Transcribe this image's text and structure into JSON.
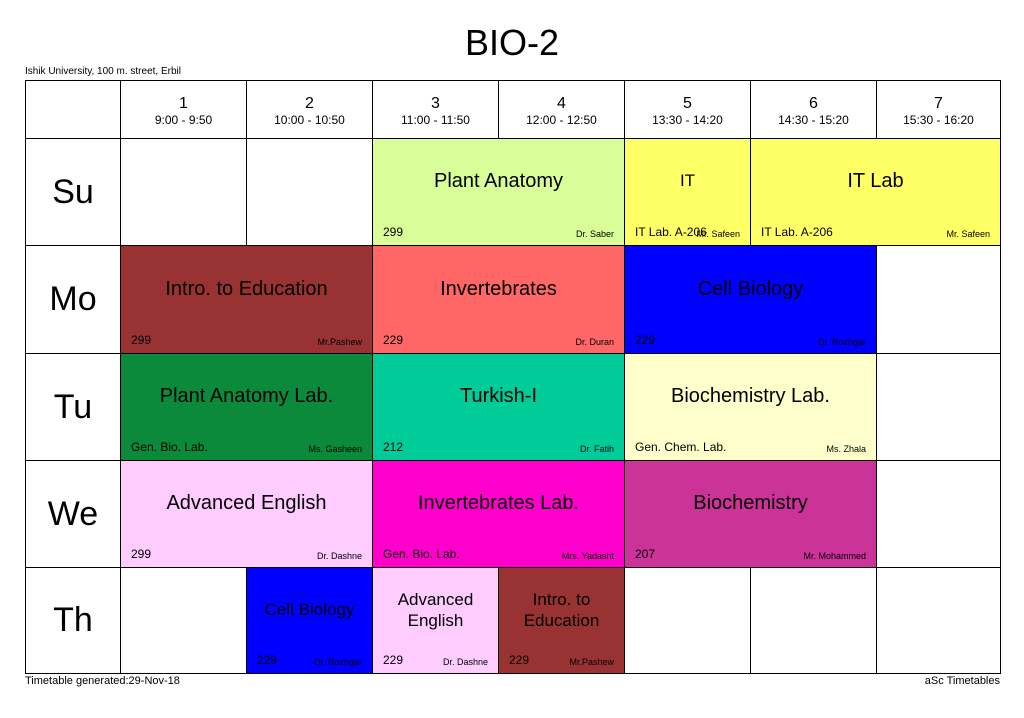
{
  "header": {
    "title": "BIO-2",
    "subtitle": "Ishik University, 100 m. street, Erbil"
  },
  "periods": [
    {
      "number": "1",
      "time": "9:00 - 9:50"
    },
    {
      "number": "2",
      "time": "10:00 - 10:50"
    },
    {
      "number": "3",
      "time": "11:00 - 11:50"
    },
    {
      "number": "4",
      "time": "12:00 - 12:50"
    },
    {
      "number": "5",
      "time": "13:30 - 14:20"
    },
    {
      "number": "6",
      "time": "14:30 - 15:20"
    },
    {
      "number": "7",
      "time": "15:30 - 16:20"
    }
  ],
  "days": [
    {
      "name": "Su",
      "lessons": [
        {
          "subject": "Plant Anatomy",
          "room": "299",
          "teacher": "Dr. Saber",
          "color": "#d9fe99"
        },
        {
          "subject": "IT",
          "room": "IT Lab. A-206",
          "teacher": "Mr. Safeen",
          "color": "#ffff66"
        },
        {
          "subject": "IT Lab",
          "room": "IT Lab. A-206",
          "teacher": "Mr. Safeen",
          "color": "#ffff66"
        }
      ]
    },
    {
      "name": "Mo",
      "lessons": [
        {
          "subject": "Intro. to Education",
          "room": "299",
          "teacher": "Mr.Pashew",
          "color": "#993333"
        },
        {
          "subject": "Invertebrates",
          "room": "229",
          "teacher": "Dr. Duran",
          "color": "#ff6666"
        },
        {
          "subject": "Cell Biology",
          "room": "229",
          "teacher": "Dr. Rozhgar",
          "color": "#0000ff"
        }
      ]
    },
    {
      "name": "Tu",
      "lessons": [
        {
          "subject": "Plant Anatomy Lab.",
          "room": "Gen. Bio. Lab.",
          "teacher": "Ms. Gasheen",
          "color": "#0b8a3b"
        },
        {
          "subject": "Turkish-I",
          "room": "212",
          "teacher": "Dr. Fatih",
          "color": "#00cc99"
        },
        {
          "subject": "Biochemistry Lab.",
          "room": "Gen. Chem. Lab.",
          "teacher": "Ms. Zhala",
          "color": "#ffffcc"
        }
      ]
    },
    {
      "name": "We",
      "lessons": [
        {
          "subject": "Advanced English",
          "room": "299",
          "teacher": "Dr. Dashne",
          "color": "#ffccff"
        },
        {
          "subject": "Invertebrates Lab.",
          "room": "Gen. Bio. Lab.",
          "teacher": "Mrs. Yadasht",
          "color": "#ff00cc"
        },
        {
          "subject": "Biochemistry",
          "room": "207",
          "teacher": "Mr. Mohammed",
          "color": "#cc3399"
        }
      ]
    },
    {
      "name": "Th",
      "lessons": [
        {
          "subject": "Cell Biology",
          "room": "229",
          "teacher": "Dr. Rozhgar",
          "color": "#0000ff"
        },
        {
          "subject": "Advanced English",
          "room": "229",
          "teacher": "Dr. Dashne",
          "color": "#ffccff"
        },
        {
          "subject": "Intro. to Education",
          "room": "229",
          "teacher": "Mr.Pashew",
          "color": "#993333"
        }
      ]
    }
  ],
  "footer": {
    "generated": "Timetable generated:29-Nov-18",
    "brand": "aSc Timetables"
  }
}
